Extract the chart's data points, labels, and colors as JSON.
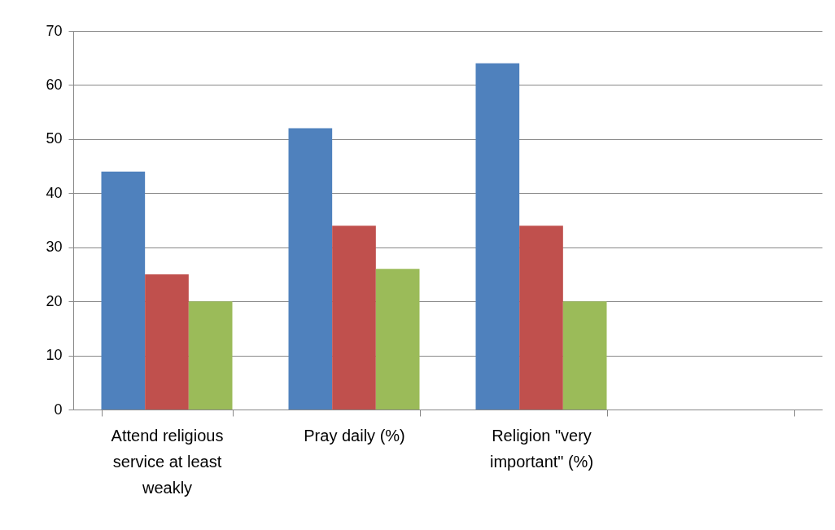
{
  "chart_data": {
    "type": "bar",
    "categories": [
      "Attend religious service at least weakly",
      "Pray daily (%)",
      "Religion \"very important\" (%)",
      null
    ],
    "series": [
      {
        "color": "#4f81bd",
        "values": [
          44,
          52,
          64,
          null
        ]
      },
      {
        "color": "#c0504d",
        "values": [
          25,
          34,
          34,
          null
        ]
      },
      {
        "color": "#9bbb59",
        "values": [
          20,
          26,
          20,
          null
        ]
      }
    ],
    "ylim": [
      0,
      70
    ],
    "yticks": [
      0,
      10,
      20,
      30,
      40,
      50,
      60,
      70
    ],
    "grid": "y"
  }
}
